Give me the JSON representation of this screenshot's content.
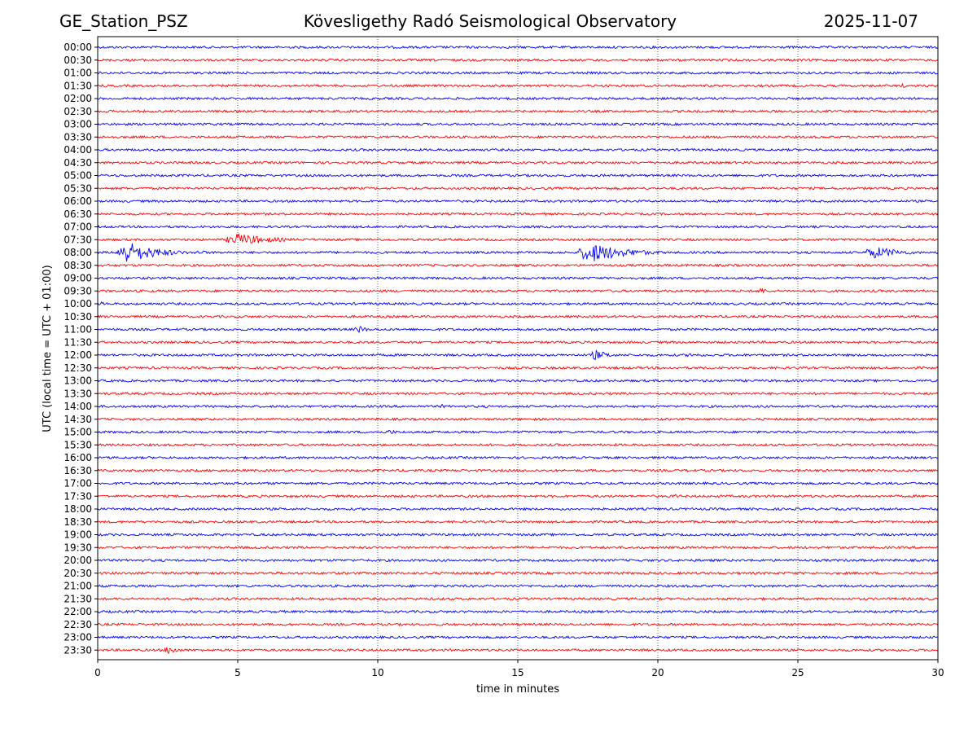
{
  "header": {
    "station": "GE_Station_PSZ",
    "observatory": "Kövesligethy Radó Seismological Observatory",
    "date": "2025-11-07"
  },
  "chart_data": {
    "type": "line",
    "title": "Kövesligethy Radó Seismological Observatory",
    "xlabel": "time in minutes",
    "ylabel": "UTC (local time = UTC + 01:00)",
    "xlim": [
      0,
      30
    ],
    "x_ticks": [
      "0",
      "5",
      "10",
      "15",
      "20",
      "25",
      "30"
    ],
    "grid": "vertical dotted at x ticks",
    "colors": {
      "even_rows": "#0000ff",
      "odd_rows": "#ff0000",
      "grid": "#000000"
    },
    "rows": [
      "00:00",
      "00:30",
      "01:00",
      "01:30",
      "02:00",
      "02:30",
      "03:00",
      "03:30",
      "04:00",
      "04:30",
      "05:00",
      "05:30",
      "06:00",
      "06:30",
      "07:00",
      "07:30",
      "08:00",
      "08:30",
      "09:00",
      "09:30",
      "10:00",
      "10:30",
      "11:00",
      "11:30",
      "12:00",
      "12:30",
      "13:00",
      "13:30",
      "14:00",
      "14:30",
      "15:00",
      "15:30",
      "16:00",
      "16:30",
      "17:00",
      "17:30",
      "18:00",
      "18:30",
      "19:00",
      "19:30",
      "20:00",
      "20:30",
      "21:00",
      "21:30",
      "22:00",
      "22:30",
      "23:00",
      "23:30"
    ],
    "noise_amplitude": 0.1,
    "events": [
      {
        "row": "07:30",
        "start_min": 4.6,
        "end_min": 7.9,
        "amplitude": 0.55
      },
      {
        "row": "08:00",
        "start_min": 0.7,
        "end_min": 3.4,
        "amplitude": 1.0
      },
      {
        "row": "08:00",
        "start_min": 3.4,
        "end_min": 5.0,
        "amplitude": 0.2
      },
      {
        "row": "08:00",
        "start_min": 17.2,
        "end_min": 20.5,
        "amplitude": 0.9
      },
      {
        "row": "08:00",
        "start_min": 27.4,
        "end_min": 30.0,
        "amplitude": 0.55
      },
      {
        "row": "08:30",
        "start_min": 0.0,
        "end_min": 0.5,
        "amplitude": 0.2
      },
      {
        "row": "09:30",
        "start_min": 23.5,
        "end_min": 24.5,
        "amplitude": 0.3
      },
      {
        "row": "10:00",
        "start_min": 0.0,
        "end_min": 0.7,
        "amplitude": 0.2
      },
      {
        "row": "11:00",
        "start_min": 9.2,
        "end_min": 10.0,
        "amplitude": 0.4
      },
      {
        "row": "12:00",
        "start_min": 17.6,
        "end_min": 19.0,
        "amplitude": 0.45
      },
      {
        "row": "12:00",
        "start_min": 21.0,
        "end_min": 22.5,
        "amplitude": 0.2
      },
      {
        "row": "14:00",
        "start_min": 12.2,
        "end_min": 12.8,
        "amplitude": 0.2
      },
      {
        "row": "15:00",
        "start_min": 10.3,
        "end_min": 11.2,
        "amplitude": 0.25
      },
      {
        "row": "17:30",
        "start_min": 20.6,
        "end_min": 21.0,
        "amplitude": 0.3
      },
      {
        "row": "23:30",
        "start_min": 2.4,
        "end_min": 3.3,
        "amplitude": 0.45
      },
      {
        "row": "00:30",
        "start_min": 2.7,
        "end_min": 3.2,
        "amplitude": 0.2
      },
      {
        "row": "01:30",
        "start_min": 28.5,
        "end_min": 30.0,
        "amplitude": 0.18
      }
    ]
  }
}
